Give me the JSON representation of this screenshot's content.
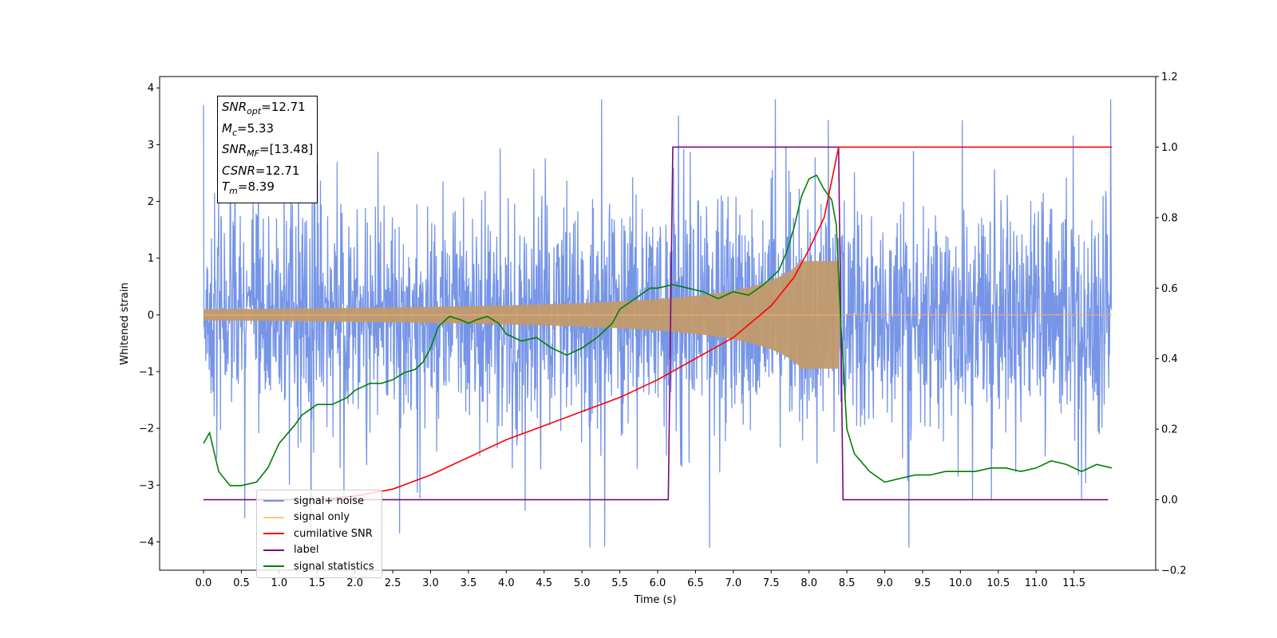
{
  "chart_data": {
    "type": "line",
    "xlabel": "Time (s)",
    "ylabel": "Whitened strain",
    "xlim": [
      -0.58,
      12.58
    ],
    "ylim_left": [
      -4.5,
      4.2
    ],
    "ylim_right": [
      -0.2,
      1.2
    ],
    "x_ticks": [
      "0.0",
      "0.5",
      "1.0",
      "1.5",
      "2.0",
      "2.5",
      "3.0",
      "3.5",
      "4.0",
      "4.5",
      "5.0",
      "5.5",
      "6.0",
      "6.5",
      "7.0",
      "7.5",
      "8.0",
      "8.5",
      "9.0",
      "9.5",
      "10.0",
      "10.5",
      "11.0",
      "11.5"
    ],
    "y_ticks_left": [
      "4",
      "3",
      "2",
      "1",
      "0",
      "−1",
      "−2",
      "−3",
      "−4"
    ],
    "y_ticks_right": [
      "1.2",
      "1.0",
      "0.8",
      "0.6",
      "0.4",
      "0.2",
      "0.0",
      "−0.2"
    ],
    "annotation": {
      "snr_opt": "=12.71",
      "mc": "=5.33",
      "snr_mf": "=[13.48]",
      "csnr": "=12.71",
      "tm": "=8.39"
    },
    "series": [
      {
        "name": "signal+ noise",
        "color": "#6f8fe6",
        "axis": "left",
        "x_range": [
          0,
          12
        ],
        "amplitude_envelope": [
          -4.1,
          3.8
        ]
      },
      {
        "name": "signal only",
        "color": "#ffb347",
        "axis": "left",
        "x_range": [
          0,
          8.39
        ],
        "peak_amplitude": 0.9
      },
      {
        "name": "cumilative SNR",
        "color": "#ff0000",
        "axis": "right",
        "x": [
          1.5,
          2.0,
          2.5,
          3.0,
          3.5,
          4.0,
          4.5,
          5.0,
          5.5,
          6.0,
          6.5,
          7.0,
          7.5,
          7.8,
          8.0,
          8.2,
          8.39,
          12.0
        ],
        "y": [
          0.0,
          0.01,
          0.03,
          0.07,
          0.12,
          0.17,
          0.21,
          0.25,
          0.29,
          0.34,
          0.4,
          0.46,
          0.55,
          0.63,
          0.71,
          0.8,
          1.0,
          1.0
        ]
      },
      {
        "name": "label",
        "color": "#7b0a7b",
        "axis": "right",
        "x": [
          0.0,
          6.14,
          6.2,
          8.39,
          8.45,
          11.95
        ],
        "y": [
          0.0,
          0.0,
          1.0,
          1.0,
          0.0,
          0.0
        ]
      },
      {
        "name": "signal statistics",
        "color": "#008000",
        "axis": "right",
        "x": [
          0.0,
          0.08,
          0.2,
          0.35,
          0.5,
          0.7,
          0.85,
          1.0,
          1.2,
          1.3,
          1.5,
          1.7,
          1.9,
          2.0,
          2.2,
          2.35,
          2.5,
          2.65,
          2.8,
          2.9,
          3.0,
          3.1,
          3.25,
          3.4,
          3.5,
          3.6,
          3.75,
          3.9,
          4.0,
          4.2,
          4.4,
          4.6,
          4.8,
          5.0,
          5.2,
          5.4,
          5.5,
          5.7,
          5.9,
          6.0,
          6.2,
          6.4,
          6.6,
          6.8,
          7.0,
          7.2,
          7.4,
          7.6,
          7.7,
          7.8,
          7.9,
          8.0,
          8.1,
          8.2,
          8.3,
          8.36,
          8.42,
          8.5,
          8.6,
          8.8,
          9.0,
          9.2,
          9.4,
          9.6,
          9.8,
          10.0,
          10.2,
          10.4,
          10.6,
          10.8,
          11.0,
          11.2,
          11.4,
          11.6,
          11.8,
          12.0
        ],
        "y": [
          0.16,
          0.19,
          0.08,
          0.04,
          0.04,
          0.05,
          0.09,
          0.16,
          0.21,
          0.24,
          0.27,
          0.27,
          0.29,
          0.31,
          0.33,
          0.33,
          0.34,
          0.36,
          0.37,
          0.39,
          0.43,
          0.49,
          0.52,
          0.51,
          0.5,
          0.51,
          0.52,
          0.5,
          0.47,
          0.45,
          0.46,
          0.43,
          0.41,
          0.43,
          0.46,
          0.5,
          0.54,
          0.57,
          0.6,
          0.6,
          0.61,
          0.6,
          0.59,
          0.57,
          0.59,
          0.58,
          0.61,
          0.65,
          0.7,
          0.77,
          0.86,
          0.91,
          0.92,
          0.88,
          0.85,
          0.78,
          0.5,
          0.2,
          0.13,
          0.08,
          0.05,
          0.06,
          0.07,
          0.07,
          0.08,
          0.08,
          0.08,
          0.09,
          0.09,
          0.08,
          0.09,
          0.11,
          0.1,
          0.08,
          0.1,
          0.09
        ]
      }
    ],
    "legend_position": "lower-left"
  }
}
